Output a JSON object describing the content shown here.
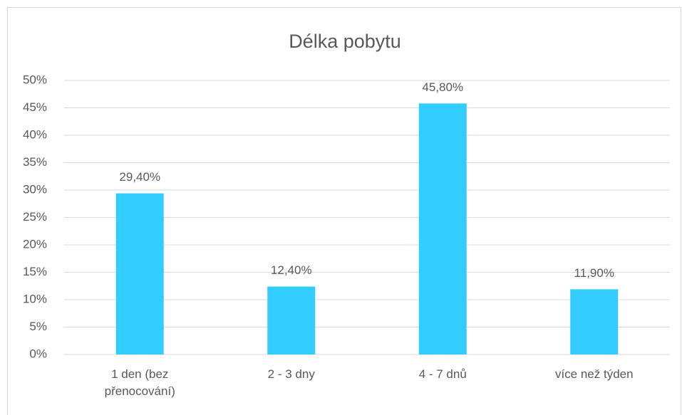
{
  "chart_data": {
    "type": "bar",
    "title": "Délka pobytu",
    "categories": [
      "1 den (bez přenocování)",
      "2 - 3 dny",
      "4 - 7 dnů",
      "více než týden"
    ],
    "values": [
      29.4,
      12.4,
      45.8,
      11.9
    ],
    "value_labels": [
      "29,40%",
      "12,40%",
      "45,80%",
      "11,90%"
    ],
    "color": "#33ccff",
    "ylim": [
      0,
      50
    ],
    "yticks": [
      {
        "value": 0,
        "label": "0%"
      },
      {
        "value": 5,
        "label": "5%"
      },
      {
        "value": 10,
        "label": "10%"
      },
      {
        "value": 15,
        "label": "15%"
      },
      {
        "value": 20,
        "label": "20%"
      },
      {
        "value": 25,
        "label": "25%"
      },
      {
        "value": 30,
        "label": "30%"
      },
      {
        "value": 35,
        "label": "35%"
      },
      {
        "value": 40,
        "label": "40%"
      },
      {
        "value": 45,
        "label": "45%"
      },
      {
        "value": 50,
        "label": "50%"
      }
    ],
    "grid": true
  }
}
